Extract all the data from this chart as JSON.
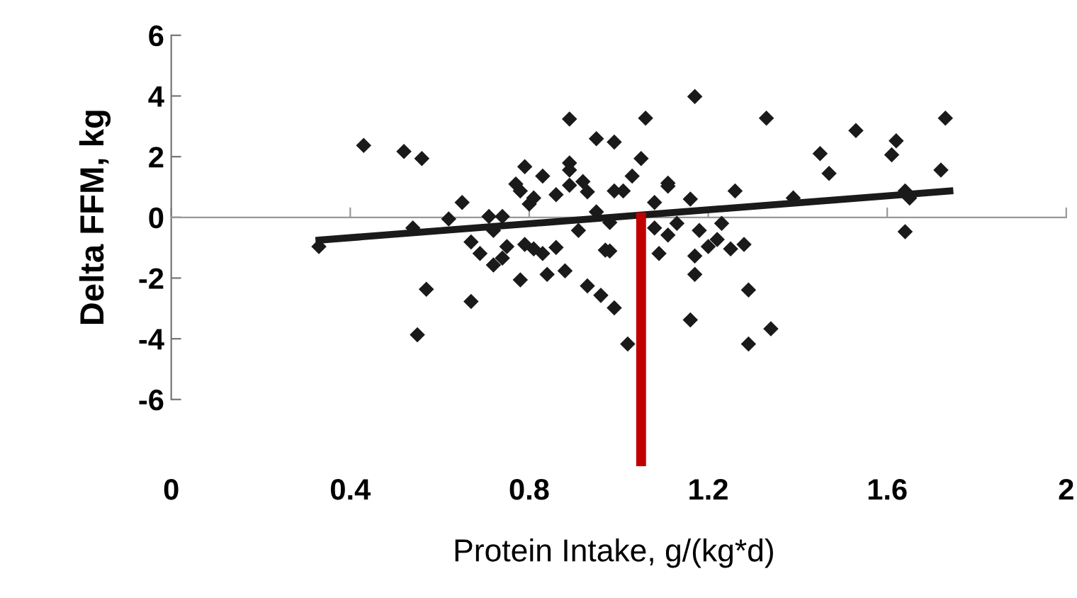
{
  "chart_data": {
    "type": "scatter",
    "xlabel": "Protein Intake, g/(kg*d)",
    "ylabel": "Delta FFM, kg",
    "xlim": [
      0,
      2
    ],
    "xticks": [
      0,
      0.4,
      0.8,
      1.2,
      1.6,
      2
    ],
    "ylim": [
      -6,
      6
    ],
    "yticks": [
      -6,
      -4,
      -2,
      0,
      2,
      4,
      6
    ],
    "series": [
      {
        "marker": "diamond",
        "color": "#1a1a1a",
        "x": [
          0.43,
          0.52,
          0.56,
          0.33,
          0.57,
          0.55,
          0.67,
          0.65,
          0.62,
          0.54,
          0.71,
          0.74,
          0.67,
          0.69,
          0.72,
          0.74,
          0.75,
          0.78,
          0.77,
          0.79,
          0.78,
          0.8,
          0.81,
          0.83,
          0.86,
          0.79,
          0.81,
          0.83,
          0.86,
          0.84,
          0.88,
          0.89,
          0.89,
          0.89,
          0.89,
          0.92,
          0.93,
          0.95,
          0.91,
          0.93,
          0.96,
          0.97,
          0.95,
          0.72,
          0.99,
          1.06,
          1.17,
          1.05,
          1.03,
          0.99,
          1.01,
          1.11,
          1.11,
          1.08,
          1.16,
          1.26,
          1.39,
          0.98,
          1.08,
          1.11,
          1.13,
          1.18,
          1.23,
          0.98,
          1.09,
          1.17,
          1.2,
          1.22,
          1.25,
          1.28,
          1.17,
          0.99,
          1.02,
          1.16,
          1.29,
          1.29,
          1.34,
          1.33,
          1.45,
          1.47,
          1.53,
          1.61,
          1.62,
          1.64,
          1.65,
          1.64,
          1.72,
          1.73
        ],
        "values": [
          2.37,
          2.17,
          1.94,
          -0.96,
          -2.37,
          -3.87,
          -2.77,
          0.49,
          -0.05,
          -0.35,
          0.03,
          0.03,
          -0.81,
          -1.19,
          -1.57,
          -1.34,
          -0.96,
          -2.06,
          1.1,
          1.67,
          0.87,
          0.44,
          0.64,
          1.36,
          0.75,
          -0.89,
          -1.04,
          -1.19,
          -0.99,
          -1.88,
          -1.76,
          3.24,
          1.79,
          1.56,
          1.06,
          1.18,
          0.84,
          2.59,
          -0.43,
          -2.26,
          -2.57,
          -1.08,
          0.18,
          -0.43,
          2.48,
          3.27,
          3.98,
          1.94,
          1.36,
          0.87,
          0.87,
          1.03,
          1.13,
          0.49,
          0.6,
          0.87,
          0.64,
          -0.17,
          -0.35,
          -0.58,
          -0.2,
          -0.43,
          -0.2,
          -1.11,
          -1.19,
          -1.27,
          -0.96,
          -0.73,
          -1.04,
          -0.89,
          -1.88,
          -2.98,
          -4.17,
          -3.38,
          -2.39,
          -4.17,
          -3.67,
          3.27,
          2.1,
          1.45,
          2.86,
          2.06,
          2.52,
          0.87,
          0.64,
          -0.47,
          1.56,
          3.27
        ]
      },
      {
        "type": "line",
        "marker": "none",
        "color": "#1a1a1a",
        "x": [
          0.33,
          1.74
        ],
        "values": [
          -0.75,
          0.87
        ]
      }
    ],
    "ref_lines": [
      {
        "axis": "x",
        "value": 1.05,
        "color": "#c00000"
      }
    ]
  }
}
